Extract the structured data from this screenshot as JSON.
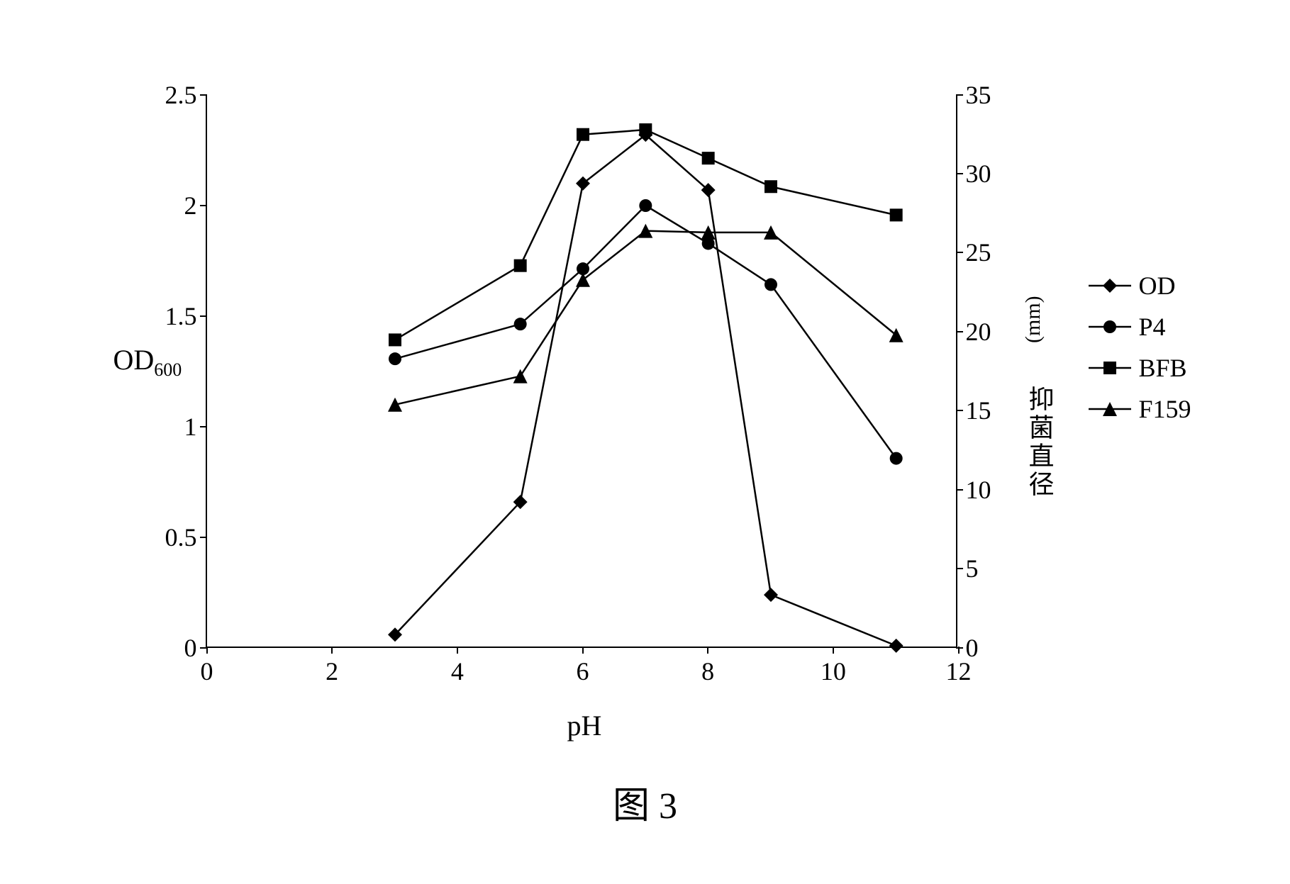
{
  "chart": {
    "type": "line",
    "background_color": "#ffffff",
    "line_color": "#000000",
    "line_width": 2.5,
    "x": {
      "title": "pH",
      "lim": [
        0,
        12
      ],
      "ticks": [
        0,
        2,
        4,
        6,
        8,
        10,
        12
      ],
      "fontsize": 36
    },
    "y1": {
      "title": "OD",
      "title_sub": "600",
      "lim": [
        0,
        2.5
      ],
      "ticks": [
        0,
        0.5,
        1,
        1.5,
        2,
        2.5
      ],
      "tick_labels": [
        "0",
        "0.5",
        "1",
        "1.5",
        "2",
        "2.5"
      ],
      "fontsize": 36
    },
    "y2": {
      "title": "抑菌直径",
      "unit": "(mm)",
      "lim": [
        0,
        35
      ],
      "ticks": [
        0,
        5,
        10,
        15,
        20,
        25,
        30,
        35
      ],
      "fontsize": 36
    },
    "series": [
      {
        "name": "OD",
        "axis": "y1",
        "marker": "diamond",
        "marker_size": 20,
        "color": "#000000",
        "x": [
          3,
          5,
          6,
          7,
          8,
          9,
          11
        ],
        "y": [
          0.06,
          0.66,
          2.1,
          2.32,
          2.07,
          0.24,
          0.01
        ]
      },
      {
        "name": "P4",
        "axis": "y2",
        "marker": "circle",
        "marker_size": 18,
        "color": "#000000",
        "x": [
          3,
          5,
          6,
          7,
          8,
          9,
          11
        ],
        "y": [
          18.3,
          20.5,
          24.0,
          28.0,
          25.6,
          23.0,
          12.0
        ]
      },
      {
        "name": "BFB",
        "axis": "y2",
        "marker": "square",
        "marker_size": 18,
        "color": "#000000",
        "x": [
          3,
          5,
          6,
          7,
          8,
          9,
          11
        ],
        "y": [
          19.5,
          24.2,
          32.5,
          32.8,
          31.0,
          29.2,
          27.4
        ]
      },
      {
        "name": "F159",
        "axis": "y2",
        "marker": "triangle",
        "marker_size": 20,
        "color": "#000000",
        "x": [
          3,
          5,
          6,
          7,
          8,
          9,
          11
        ],
        "y": [
          15.4,
          17.2,
          23.3,
          26.4,
          26.3,
          26.3,
          19.8
        ]
      }
    ],
    "legend": {
      "position": "right",
      "items": [
        "OD",
        "P4",
        "BFB",
        "F159"
      ],
      "fontsize": 36
    },
    "caption": "图 3"
  }
}
